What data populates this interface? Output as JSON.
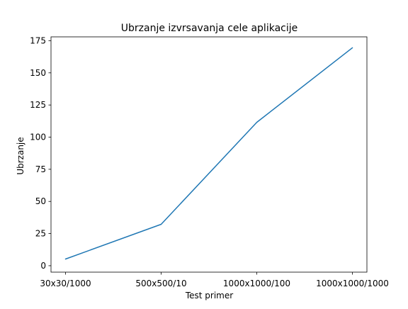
{
  "chart_data": {
    "type": "line",
    "title": "Ubrzanje izvrsavanja cele aplikacije",
    "xlabel": "Test primer",
    "ylabel": "Ubrzanje",
    "categories": [
      "30x30/1000",
      "500x500/10",
      "1000x1000/100",
      "1000x1000/1000"
    ],
    "series": [
      {
        "values": [
          5.2,
          32.2,
          111.5,
          169.5
        ],
        "color": "#1f77b4"
      }
    ],
    "ylim": [
      -5,
      178
    ],
    "yticks": [
      0,
      25,
      50,
      75,
      100,
      125,
      150,
      175
    ],
    "grid": false,
    "legend": "none"
  }
}
